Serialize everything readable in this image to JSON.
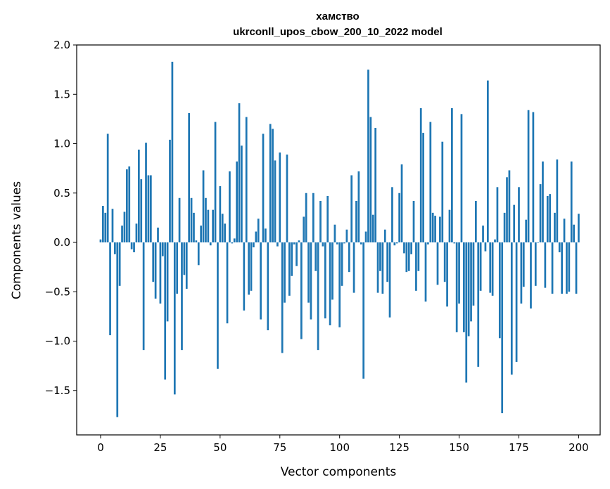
{
  "chart_data": {
    "type": "bar",
    "title": "хамство",
    "subtitle": "ukrconll_upos_cbow_200_10_2022 model",
    "xlabel": "Vector components",
    "ylabel": "Components values",
    "xlim": [
      -10,
      209
    ],
    "ylim": [
      -1.95,
      2.0
    ],
    "xticks": [
      0,
      25,
      50,
      75,
      100,
      125,
      150,
      175,
      200
    ],
    "yticks": [
      -1.5,
      -1.0,
      -0.5,
      0.0,
      0.5,
      1.0,
      1.5,
      2.0
    ],
    "ytick_labels": [
      "−1.5",
      "−1.0",
      "−0.5",
      "0.0",
      "0.5",
      "1.0",
      "1.5",
      "2.0"
    ],
    "bar_color": "#1f77b4",
    "grid": false,
    "values": [
      0.03,
      0.37,
      0.3,
      1.1,
      -0.94,
      0.34,
      -0.12,
      -1.77,
      -0.44,
      0.17,
      0.31,
      0.74,
      0.77,
      -0.07,
      -0.1,
      0.19,
      0.94,
      0.64,
      -1.09,
      1.01,
      0.68,
      0.68,
      -0.4,
      -0.57,
      0.15,
      -0.62,
      -0.14,
      -1.39,
      -0.8,
      1.04,
      1.83,
      -1.54,
      -0.52,
      0.45,
      -1.09,
      -0.33,
      -0.47,
      1.31,
      0.45,
      0.3,
      0.02,
      -0.23,
      0.17,
      0.73,
      0.45,
      0.33,
      -0.03,
      0.33,
      1.22,
      -1.28,
      0.57,
      0.29,
      0.19,
      -0.82,
      0.72,
      -0.01,
      0.04,
      0.82,
      1.41,
      0.98,
      -0.69,
      1.27,
      -0.53,
      -0.49,
      -0.05,
      0.11,
      0.24,
      -0.78,
      1.1,
      0.14,
      -0.89,
      1.2,
      1.15,
      0.83,
      -0.04,
      0.91,
      -1.12,
      -0.61,
      0.89,
      -0.54,
      -0.34,
      -0.02,
      -0.24,
      0.02,
      -0.98,
      0.26,
      0.5,
      -0.61,
      -0.78,
      0.5,
      -0.29,
      -1.09,
      0.42,
      -0.04,
      -0.77,
      0.47,
      -0.84,
      -0.58,
      0.18,
      -0.02,
      -0.86,
      -0.44,
      -0.01,
      0.13,
      -0.3,
      0.68,
      -0.51,
      0.42,
      0.72,
      -0.02,
      -1.38,
      0.11,
      1.75,
      1.27,
      0.28,
      1.16,
      -0.51,
      -0.29,
      -0.52,
      0.13,
      -0.4,
      -0.76,
      0.56,
      -0.03,
      -0.01,
      0.5,
      0.79,
      -0.11,
      -0.3,
      -0.29,
      -0.12,
      0.42,
      -0.49,
      -0.29,
      1.36,
      1.11,
      -0.6,
      -0.02,
      1.22,
      0.3,
      0.27,
      -0.43,
      0.26,
      1.02,
      -0.4,
      -0.65,
      0.33,
      1.36,
      -0.01,
      -0.91,
      -0.62,
      1.3,
      -0.91,
      -1.42,
      -0.95,
      -0.8,
      -0.64,
      0.42,
      -1.26,
      -0.49,
      0.17,
      -0.09,
      1.64,
      -0.51,
      -0.54,
      0.03,
      0.56,
      -0.97,
      -1.73,
      0.3,
      0.66,
      0.73,
      -1.34,
      0.38,
      -1.21,
      0.56,
      -0.62,
      -0.45,
      0.23,
      1.34,
      -0.67,
      1.32,
      -0.44,
      0.0,
      0.59,
      0.82,
      -0.46,
      0.47,
      0.49,
      -0.52,
      0.3,
      0.84,
      -0.1,
      -0.52,
      0.24,
      -0.52,
      -0.5,
      0.82,
      0.18,
      -0.52,
      0.29
    ]
  }
}
